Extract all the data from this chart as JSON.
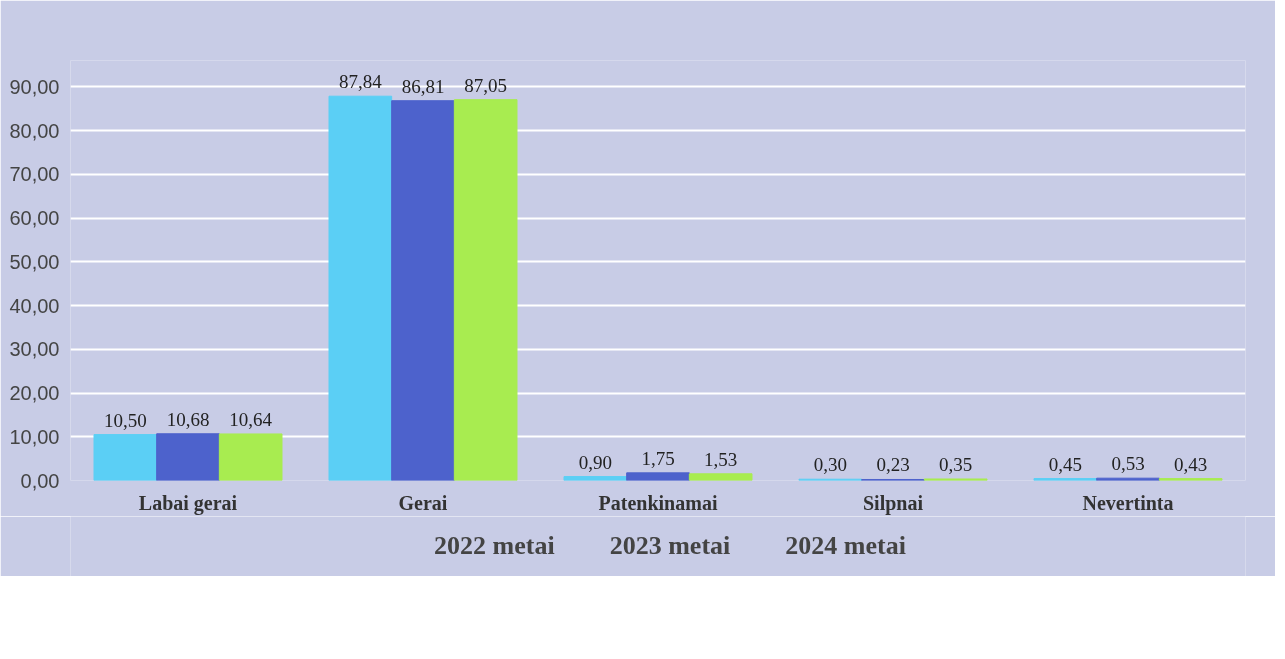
{
  "chart_data": {
    "type": "bar",
    "categories": [
      "Labai gerai",
      "Gerai",
      "Patenkinamai",
      "Silpnai",
      "Nevertinta"
    ],
    "series": [
      {
        "name": "2022 metai",
        "color": "#5bcff5",
        "values": [
          10.5,
          87.84,
          0.9,
          0.3,
          0.45
        ],
        "value_labels": [
          "10,50",
          "87,84",
          "0,90",
          "0,30",
          "0,45"
        ]
      },
      {
        "name": "2023 metai",
        "color": "#4d62cc",
        "values": [
          10.68,
          86.81,
          1.75,
          0.23,
          0.53
        ],
        "value_labels": [
          "10,68",
          "86,81",
          "1,75",
          "0,23",
          "0,53"
        ]
      },
      {
        "name": "2024 metai",
        "color": "#a8ec50",
        "values": [
          10.64,
          87.05,
          1.53,
          0.35,
          0.43
        ],
        "value_labels": [
          "10,64",
          "87,05",
          "1,53",
          "0,35",
          "0,43"
        ]
      }
    ],
    "ylim": [
      0,
      96
    ],
    "yticks": [
      {
        "value": 0,
        "label": "0,00"
      },
      {
        "value": 10,
        "label": "10,00"
      },
      {
        "value": 20,
        "label": "20,00"
      },
      {
        "value": 30,
        "label": "30,00"
      },
      {
        "value": 40,
        "label": "40,00"
      },
      {
        "value": 50,
        "label": "50,00"
      },
      {
        "value": 60,
        "label": "60,00"
      },
      {
        "value": 70,
        "label": "70,00"
      },
      {
        "value": 80,
        "label": "80,00"
      },
      {
        "value": 90,
        "label": "90,00"
      }
    ],
    "grid": "y",
    "legend": "bottom"
  }
}
